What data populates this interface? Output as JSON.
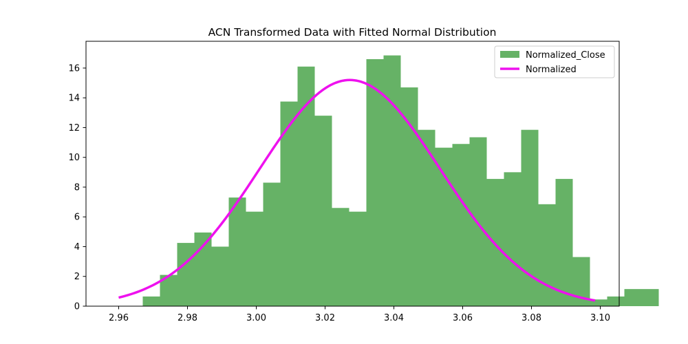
{
  "chart_data": {
    "type": "bar",
    "title": "ACN Transformed Data with Fitted Normal Distribution",
    "xlabel": "",
    "ylabel": "",
    "xlim": [
      2.9505,
      3.1055
    ],
    "ylim": [
      0,
      17.8
    ],
    "x_ticks": [
      {
        "value": 2.96,
        "label": "2.96"
      },
      {
        "value": 2.98,
        "label": "2.98"
      },
      {
        "value": 3.0,
        "label": "3.00"
      },
      {
        "value": 3.02,
        "label": "3.02"
      },
      {
        "value": 3.04,
        "label": "3.04"
      },
      {
        "value": 3.06,
        "label": "3.06"
      },
      {
        "value": 3.08,
        "label": "3.08"
      },
      {
        "value": 3.1,
        "label": "3.10"
      }
    ],
    "y_ticks": [
      {
        "value": 0,
        "label": "0"
      },
      {
        "value": 2,
        "label": "2"
      },
      {
        "value": 4,
        "label": "4"
      },
      {
        "value": 6,
        "label": "6"
      },
      {
        "value": 8,
        "label": "8"
      },
      {
        "value": 10,
        "label": "10"
      },
      {
        "value": 12,
        "label": "12"
      },
      {
        "value": 14,
        "label": "14"
      },
      {
        "value": 16,
        "label": "16"
      }
    ],
    "grid": false,
    "legend_position": "top-right",
    "legend": [
      {
        "label": "Normalized_Close",
        "kind": "patch",
        "color": "#66b266"
      },
      {
        "label": "Normalized",
        "kind": "line",
        "color": "#ee11ee"
      }
    ],
    "histogram": {
      "name": "Normalized_Close",
      "color": "#66b266",
      "bins": [
        {
          "x0": 2.967,
          "x1": 2.972,
          "value": 0.65
        },
        {
          "x0": 2.972,
          "x1": 2.977,
          "value": 2.1
        },
        {
          "x0": 2.977,
          "x1": 2.982,
          "value": 4.25
        },
        {
          "x0": 2.982,
          "x1": 2.987,
          "value": 4.95
        },
        {
          "x0": 2.987,
          "x1": 2.992,
          "value": 4.0
        },
        {
          "x0": 2.992,
          "x1": 2.997,
          "value": 7.3
        },
        {
          "x0": 2.997,
          "x1": 3.002,
          "value": 6.35
        },
        {
          "x0": 3.002,
          "x1": 3.007,
          "value": 8.3
        },
        {
          "x0": 3.007,
          "x1": 3.012,
          "value": 13.75
        },
        {
          "x0": 3.012,
          "x1": 3.017,
          "value": 16.1
        },
        {
          "x0": 3.017,
          "x1": 3.022,
          "value": 12.8
        },
        {
          "x0": 3.022,
          "x1": 3.027,
          "value": 6.6
        },
        {
          "x0": 3.027,
          "x1": 3.032,
          "value": 6.35
        },
        {
          "x0": 3.032,
          "x1": 3.037,
          "value": 16.6
        },
        {
          "x0": 3.037,
          "x1": 3.042,
          "value": 16.85
        },
        {
          "x0": 3.042,
          "x1": 3.047,
          "value": 14.7
        },
        {
          "x0": 3.047,
          "x1": 3.052,
          "value": 11.85
        },
        {
          "x0": 3.052,
          "x1": 3.057,
          "value": 10.65
        },
        {
          "x0": 3.057,
          "x1": 3.062,
          "value": 10.9
        },
        {
          "x0": 3.062,
          "x1": 3.067,
          "value": 11.35
        },
        {
          "x0": 3.067,
          "x1": 3.072,
          "value": 8.55
        },
        {
          "x0": 3.072,
          "x1": 3.077,
          "value": 9.0
        },
        {
          "x0": 3.077,
          "x1": 3.082,
          "value": 11.85
        },
        {
          "x0": 3.082,
          "x1": 3.087,
          "value": 6.85
        },
        {
          "x0": 3.087,
          "x1": 3.092,
          "value": 8.55
        },
        {
          "x0": 3.092,
          "x1": 3.097,
          "value": 3.3
        },
        {
          "x0": 3.097,
          "x1": 3.102,
          "value": 0.45
        },
        {
          "x0": 3.102,
          "x1": 3.107,
          "value": 0.65
        },
        {
          "x0": 3.107,
          "x1": 3.112,
          "value": 1.15
        },
        {
          "x0": 3.112,
          "x1": 3.117,
          "value": 1.15
        }
      ]
    },
    "series": [
      {
        "name": "Normalized",
        "type": "line",
        "color": "#ee11ee",
        "mean": 3.0272,
        "std": 0.02625,
        "x_start": 2.96,
        "x_end": 3.0985
      }
    ]
  }
}
